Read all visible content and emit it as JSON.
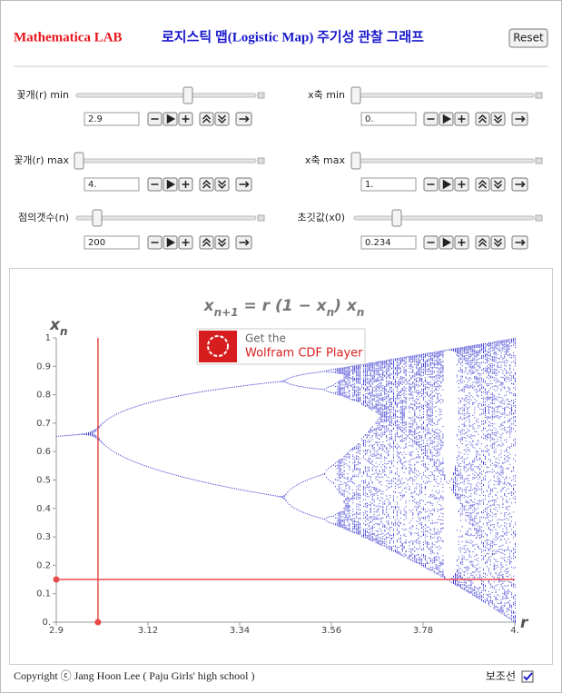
{
  "header": {
    "title": "Mathematica LAB",
    "subtitle": "로지스틱 맵(Logistic Map) 주기성 관찰 그래프",
    "reset": "Reset"
  },
  "controls": [
    {
      "label": "꽃개(r) min",
      "value": "2.9"
    },
    {
      "label": "x축 min",
      "value": "0."
    },
    {
      "label": "꽃개(r) max",
      "value": "4."
    },
    {
      "label": "x축 max",
      "value": "1."
    },
    {
      "label": "점의갯수(n)",
      "value": "200"
    },
    {
      "label": "초깃값(x0)",
      "value": "0.234"
    }
  ],
  "chart_data": {
    "type": "scatter",
    "formula": [
      "x",
      "n+1",
      " = r (1 − x",
      "n",
      ") x",
      "n"
    ],
    "ylabel": {
      "main": "x",
      "sub": "n"
    },
    "xlabel": "r",
    "xlim": [
      2.9,
      4
    ],
    "ylim": [
      0,
      1
    ],
    "xticks": [
      2.9,
      3.12,
      3.34,
      3.56,
      3.78,
      {
        "value": 4,
        "label": "4."
      }
    ],
    "yticks": [
      {
        "value": 0,
        "label": "0."
      },
      0.1,
      0.2,
      0.3,
      0.4,
      0.5,
      0.6,
      0.7,
      0.8,
      0.9,
      1
    ],
    "guide": {
      "r": 3,
      "x": 0.15,
      "color": "#e84a4a"
    },
    "color": "#3a3ad0"
  },
  "badge": {
    "line1": "Get the",
    "line2": "Wolfram CDF Player"
  },
  "footer": {
    "copyright": "Copyright ⓒ Jang Hoon Lee ( Paju Girls' high school )",
    "guide_label": "보조선",
    "guide_checked": true
  }
}
